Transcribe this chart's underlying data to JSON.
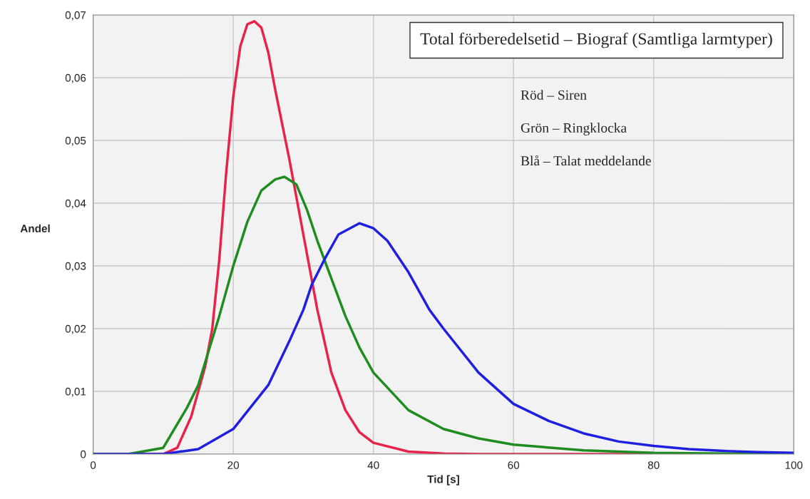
{
  "chart_data": {
    "type": "line",
    "title": "Total förberedelsetid – Biograf (Samtliga larmtyper)",
    "xlabel": "Tid [s]",
    "ylabel": "Andel",
    "annotations": [
      "Röd – Siren",
      "Grön – Ringklocka",
      "Blå – Talat meddelande"
    ],
    "series": [
      {
        "color": "#e8234a",
        "x": [
          0,
          10,
          12,
          14,
          16,
          17,
          18,
          19,
          20,
          21,
          22,
          23,
          24,
          25,
          26,
          28,
          30,
          32,
          34,
          36,
          38,
          40,
          45,
          50,
          55,
          100
        ],
        "values": [
          0,
          0,
          0.001,
          0.006,
          0.014,
          0.02,
          0.031,
          0.045,
          0.057,
          0.065,
          0.0685,
          0.069,
          0.068,
          0.064,
          0.058,
          0.047,
          0.035,
          0.023,
          0.013,
          0.007,
          0.0035,
          0.0018,
          0.0004,
          0.0001,
          0,
          0
        ]
      },
      {
        "color": "#1e8c1e",
        "x": [
          0,
          5,
          10,
          13.4,
          15,
          18,
          20,
          22,
          24,
          26,
          27.3,
          29,
          30.5,
          32,
          34,
          36,
          38,
          40,
          45,
          50,
          55,
          60,
          70,
          80,
          90,
          100
        ],
        "values": [
          0,
          0,
          0.001,
          0.0074,
          0.011,
          0.022,
          0.03,
          0.037,
          0.042,
          0.0438,
          0.0442,
          0.043,
          0.039,
          0.034,
          0.028,
          0.022,
          0.017,
          0.013,
          0.007,
          0.004,
          0.0025,
          0.0015,
          0.0006,
          0.0002,
          0.0001,
          0
        ]
      },
      {
        "color": "#1f1fe0",
        "x": [
          0,
          10,
          15,
          20,
          25,
          28,
          30,
          31.2,
          33,
          35,
          38,
          40,
          42,
          45,
          48,
          50,
          55,
          60,
          65,
          70,
          75,
          80,
          85,
          90,
          95,
          100
        ],
        "values": [
          0,
          0,
          0.0008,
          0.004,
          0.011,
          0.018,
          0.023,
          0.027,
          0.031,
          0.035,
          0.0368,
          0.036,
          0.034,
          0.029,
          0.023,
          0.02,
          0.013,
          0.008,
          0.0053,
          0.0033,
          0.002,
          0.0013,
          0.0008,
          0.0005,
          0.0003,
          0.0002
        ]
      }
    ],
    "xlim": [
      0,
      100
    ],
    "xticks": [
      0,
      20,
      40,
      60,
      80,
      100
    ],
    "ylim": [
      0,
      0.07
    ],
    "yticks": [
      0,
      {
        "value": 0.01,
        "label": "0,01"
      },
      {
        "value": 0.02,
        "label": "0,02"
      },
      {
        "value": 0.03,
        "label": "0,03"
      },
      {
        "value": 0.04,
        "label": "0,04"
      },
      {
        "value": 0.05,
        "label": "0,05"
      },
      {
        "value": 0.06,
        "label": "0,06"
      },
      {
        "value": 0.07,
        "label": "0,07"
      }
    ],
    "grid": true,
    "marker": "none",
    "line_style": "solid"
  }
}
